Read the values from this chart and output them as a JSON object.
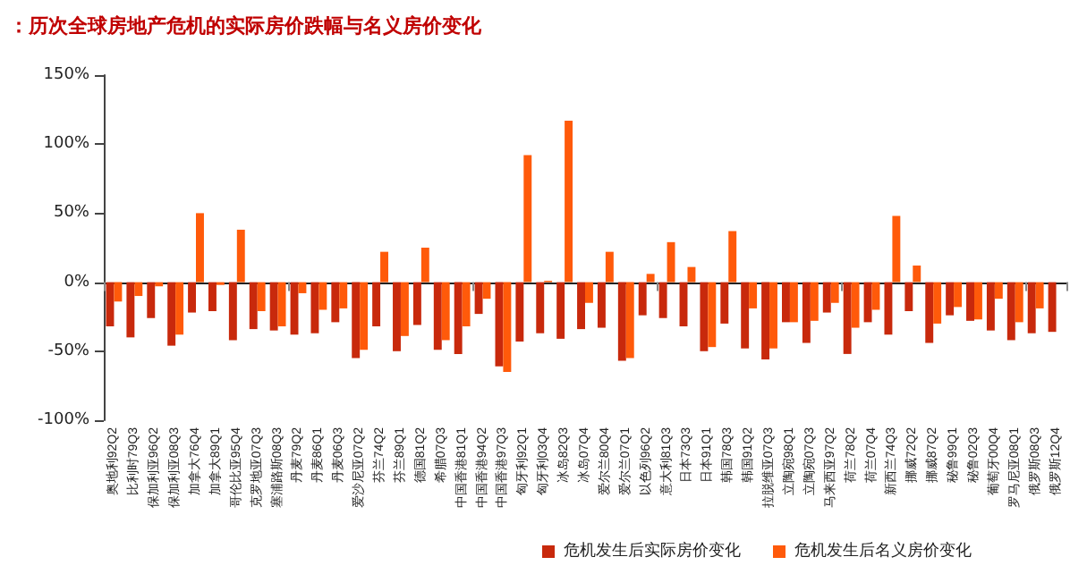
{
  "chart_data": {
    "type": "bar",
    "title": "：历次全球房地产危机的实际房价跌幅与名义房价变化",
    "categories": [
      "奥地利92Q2",
      "比利时79Q3",
      "保加利亚96Q2",
      "保加利亚08Q3",
      "加拿大76Q4",
      "加拿大89Q1",
      "哥伦比亚95Q4",
      "克罗地亚07Q3",
      "塞浦路斯08Q3",
      "丹麦79Q2",
      "丹麦86Q1",
      "丹麦06Q3",
      "爱沙尼亚07Q2",
      "芬兰74Q2",
      "芬兰89Q1",
      "德国81Q2",
      "希腊07Q3",
      "中国香港81Q1",
      "中国香港94Q2",
      "中国香港97Q3",
      "匈牙利92Q1",
      "匈牙利03Q4",
      "冰岛82Q3",
      "冰岛07Q4",
      "爱尔兰80Q4",
      "爱尔兰07Q1",
      "以色列96Q2",
      "意大利81Q3",
      "日本73Q3",
      "日本91Q1",
      "韩国78Q3",
      "韩国91Q2",
      "拉脱维亚07Q3",
      "立陶宛98Q1",
      "立陶宛07Q3",
      "马来西亚97Q2",
      "荷兰78Q2",
      "荷兰07Q4",
      "新西兰74Q3",
      "挪威72Q2",
      "挪威87Q2",
      "秘鲁99Q1",
      "秘鲁02Q3",
      "葡萄牙00Q4",
      "罗马尼亚08Q1",
      "俄罗斯08Q3",
      "俄罗斯12Q4"
    ],
    "series": [
      {
        "name": "危机发生后实际房价变化",
        "color": "#c8290c",
        "values": [
          -32,
          -40,
          -26,
          -46,
          -22,
          -21,
          -42,
          -34,
          -35,
          -38,
          -37,
          -29,
          -55,
          -32,
          -50,
          -31,
          -49,
          -52,
          -23,
          -61,
          -43,
          -37,
          -41,
          -34,
          -33,
          -57,
          -24,
          -26,
          -32,
          -50,
          -30,
          -48,
          -56,
          -29,
          -44,
          -22,
          -52,
          -29,
          -38,
          -21,
          -44,
          -24,
          -28,
          -35,
          -42,
          -37,
          -36
        ]
      },
      {
        "name": "危机发生后名义房价变化",
        "color": "#ff5a0a",
        "values": [
          -14,
          -10,
          -3,
          -38,
          50,
          -2,
          38,
          -21,
          -32,
          -8,
          -20,
          -19,
          -49,
          22,
          -39,
          25,
          -42,
          -32,
          -12,
          -65,
          92,
          1,
          117,
          -15,
          22,
          -55,
          6,
          29,
          11,
          -47,
          37,
          -19,
          -48,
          -29,
          -28,
          -15,
          -33,
          -20,
          48,
          12,
          -30,
          -18,
          -27,
          -12,
          -29,
          -19,
          null
        ]
      }
    ],
    "ylim": [
      -100,
      150
    ],
    "yticks": [
      {
        "value": -100,
        "label": "-100%"
      },
      {
        "value": -50,
        "label": "-50%"
      },
      {
        "value": 0,
        "label": "0%"
      },
      {
        "value": 50,
        "label": "50%"
      },
      {
        "value": 100,
        "label": "100%"
      },
      {
        "value": 150,
        "label": "150%"
      }
    ],
    "legend": "bottom right"
  }
}
